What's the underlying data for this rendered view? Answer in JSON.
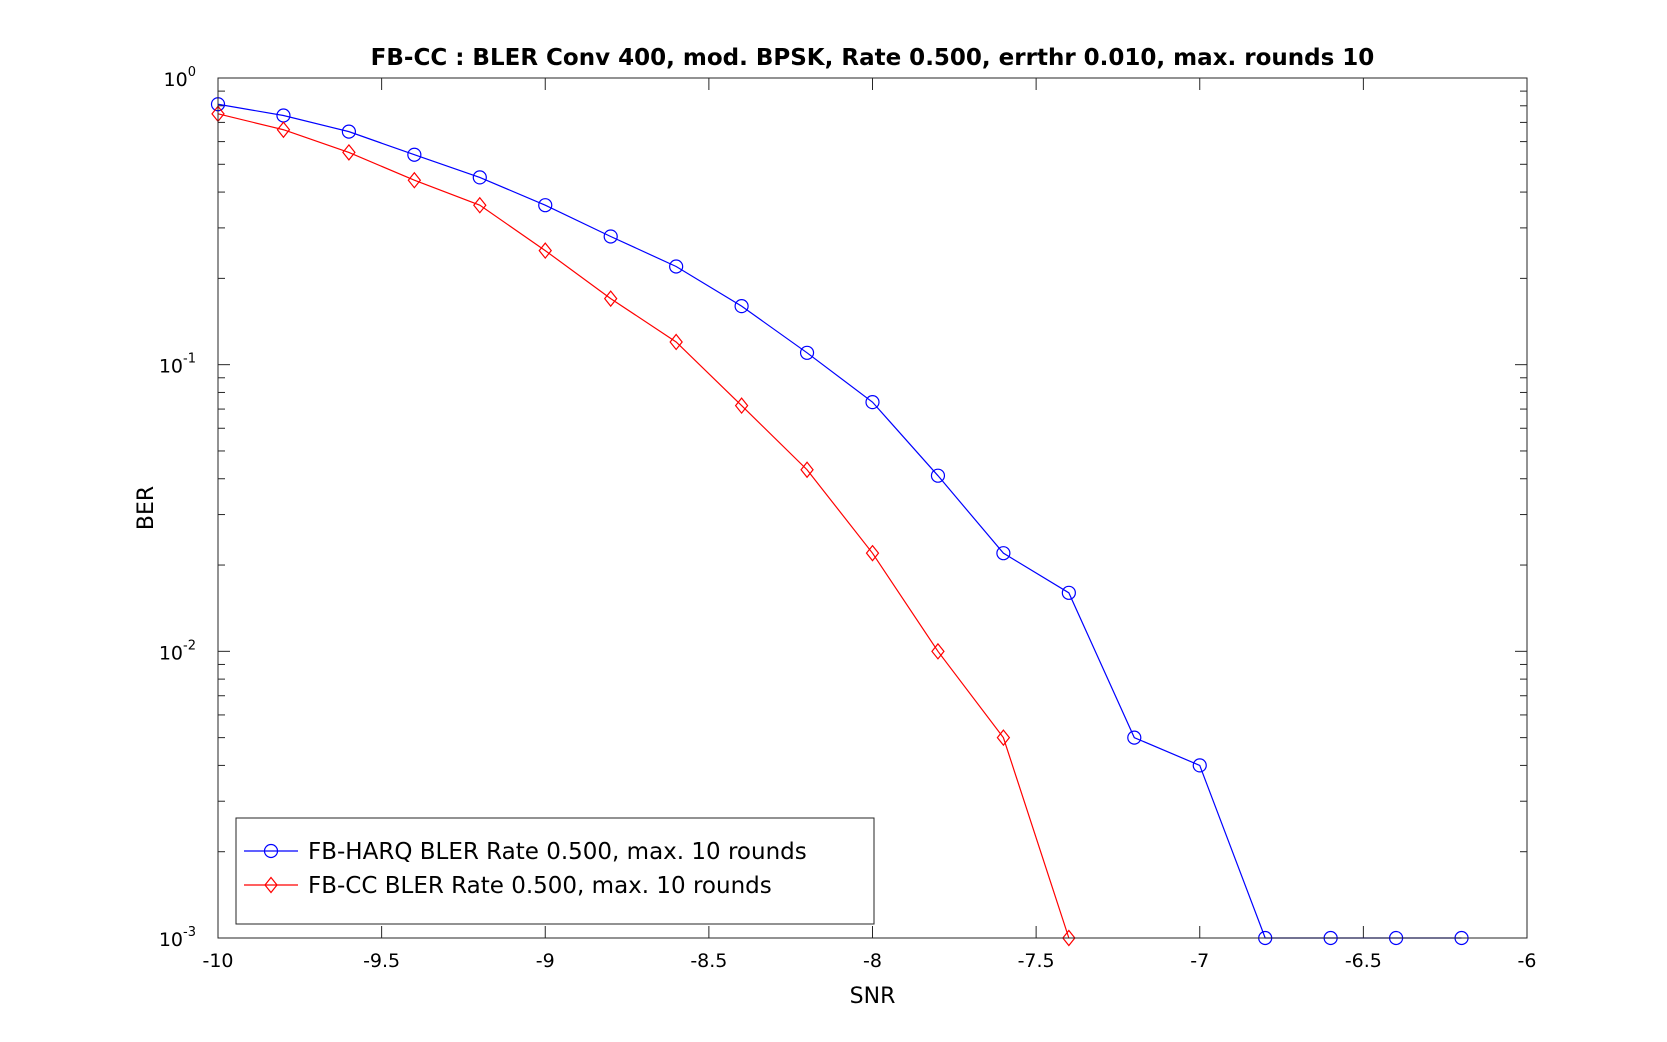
{
  "chart_data": {
    "type": "line",
    "title": "FB-CC : BLER Conv 400, mod. BPSK, Rate 0.500, errthr 0.010, max. rounds 10",
    "xlabel": "SNR",
    "ylabel": "BER",
    "xlim": [
      -10,
      -6
    ],
    "ylim": [
      0.001,
      1
    ],
    "yscale": "log",
    "grid": false,
    "legend_position": "bottom-left",
    "x_ticks": [
      "-10",
      "-9.5",
      "-9",
      "-8.5",
      "-8",
      "-7.5",
      "-7",
      "-6.5",
      "-6"
    ],
    "y_ticks": [
      {
        "base": "10",
        "exp": "0"
      },
      {
        "base": "10",
        "exp": "-1"
      },
      {
        "base": "10",
        "exp": "-2"
      },
      {
        "base": "10",
        "exp": "-3"
      }
    ],
    "series": [
      {
        "name": "FB-HARQ BLER Rate 0.500, max. 10 rounds",
        "color": "#0000ff",
        "marker": "circle",
        "x": [
          -10,
          -9.8,
          -9.6,
          -9.4,
          -9.2,
          -9.0,
          -8.8,
          -8.6,
          -8.4,
          -8.2,
          -8.0,
          -7.8,
          -7.6,
          -7.4,
          -7.2,
          -7.0,
          -6.8,
          -6.6,
          -6.4,
          -6.2
        ],
        "values": [
          0.81,
          0.74,
          0.65,
          0.54,
          0.45,
          0.36,
          0.28,
          0.22,
          0.16,
          0.11,
          0.074,
          0.041,
          0.022,
          0.016,
          0.005,
          0.004,
          0.001,
          0.001,
          0.001,
          0.001
        ]
      },
      {
        "name": "FB-CC BLER Rate 0.500, max. 10 rounds",
        "color": "#ff0000",
        "marker": "diamond",
        "x": [
          -10,
          -9.8,
          -9.6,
          -9.4,
          -9.2,
          -9.0,
          -8.8,
          -8.6,
          -8.4,
          -8.2,
          -8.0,
          -7.8,
          -7.6,
          -7.4
        ],
        "values": [
          0.75,
          0.66,
          0.55,
          0.44,
          0.36,
          0.25,
          0.17,
          0.12,
          0.072,
          0.043,
          0.022,
          0.01,
          0.005,
          0.001
        ]
      }
    ]
  }
}
